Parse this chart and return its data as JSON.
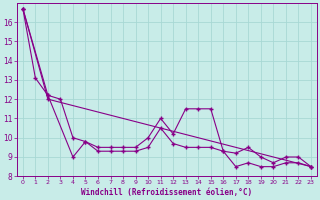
{
  "xlabel": "Windchill (Refroidissement éolien,°C)",
  "background_color": "#c8ece8",
  "grid_color": "#a8d8d4",
  "line_color": "#880088",
  "x_values": [
    0,
    1,
    2,
    3,
    4,
    5,
    6,
    7,
    8,
    9,
    10,
    11,
    12,
    13,
    14,
    15,
    16,
    17,
    18,
    19,
    20,
    21,
    22,
    23
  ],
  "series1": [
    16.7,
    13.1,
    12.2,
    12.0,
    10.0,
    9.8,
    9.5,
    9.5,
    9.5,
    9.5,
    10.0,
    11.0,
    10.2,
    11.5,
    11.5,
    11.5,
    9.3,
    9.2,
    9.5,
    9.0,
    8.7,
    9.0,
    9.0,
    8.5
  ],
  "series2": [
    16.7,
    null,
    12.2,
    null,
    9.0,
    9.8,
    9.3,
    9.3,
    9.3,
    9.3,
    9.5,
    10.5,
    9.7,
    9.5,
    9.5,
    9.5,
    9.3,
    8.5,
    8.7,
    8.5,
    8.5,
    8.7,
    8.7,
    8.5
  ],
  "series3": [
    16.7,
    null,
    12.0,
    null,
    null,
    null,
    null,
    null,
    null,
    null,
    null,
    null,
    null,
    null,
    null,
    null,
    null,
    null,
    null,
    null,
    null,
    null,
    null,
    8.5
  ],
  "ylim_min": 8,
  "ylim_max": 17,
  "xlim_min": -0.5,
  "xlim_max": 23.5,
  "yticks": [
    8,
    9,
    10,
    11,
    12,
    13,
    14,
    15,
    16
  ],
  "xticks": [
    0,
    1,
    2,
    3,
    4,
    5,
    6,
    7,
    8,
    9,
    10,
    11,
    12,
    13,
    14,
    15,
    16,
    17,
    18,
    19,
    20,
    21,
    22,
    23
  ],
  "tick_fontsize": 5.5,
  "xlabel_fontsize": 5.5,
  "marker_size": 3.5,
  "linewidth": 0.8
}
